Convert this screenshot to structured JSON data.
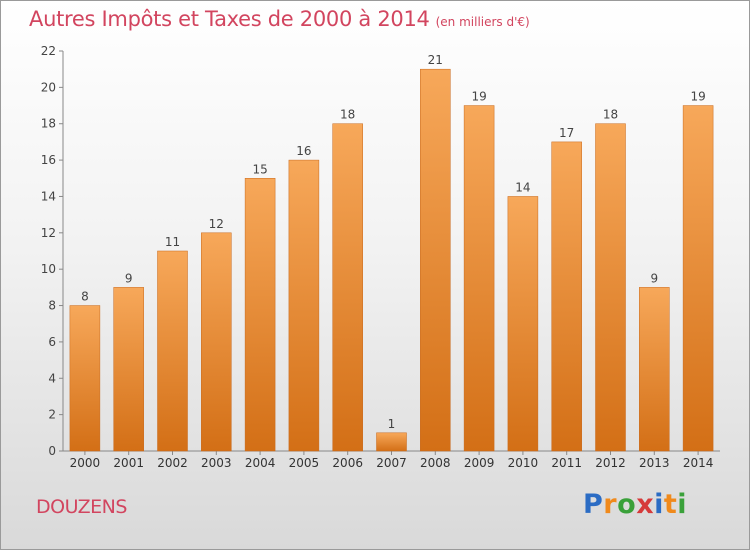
{
  "header": {
    "title": "Autres Impôts et Taxes de 2000 à 2014",
    "unit": "(en milliers d'€)"
  },
  "footer": {
    "commune": "DOUZENS",
    "logo_text": "Proxiti"
  },
  "colors": {
    "title": "#d2455f",
    "bar_top": "#f7a85a",
    "bar_bottom": "#d36f16",
    "bar_stroke": "#c8681a",
    "logo": [
      "#2b6cc4",
      "#f08a1c",
      "#3aa13a",
      "#d63a3a",
      "#2b6cc4",
      "#f08a1c",
      "#3aa13a"
    ]
  },
  "chart_data": {
    "type": "bar",
    "categories": [
      "2000",
      "2001",
      "2002",
      "2003",
      "2004",
      "2005",
      "2006",
      "2007",
      "2008",
      "2009",
      "2010",
      "2011",
      "2012",
      "2013",
      "2014"
    ],
    "values": [
      8,
      9,
      11,
      12,
      15,
      16,
      18,
      1,
      21,
      19,
      14,
      17,
      18,
      9,
      19
    ],
    "title": "Autres Impôts et Taxes de 2000 à 2014",
    "subtitle": "(en milliers d'€)",
    "xlabel": "",
    "ylabel": "",
    "ylim": [
      0,
      22
    ],
    "yticks": [
      0,
      2,
      4,
      6,
      8,
      10,
      12,
      14,
      16,
      18,
      20,
      22
    ],
    "grid": false,
    "legend": "none"
  }
}
